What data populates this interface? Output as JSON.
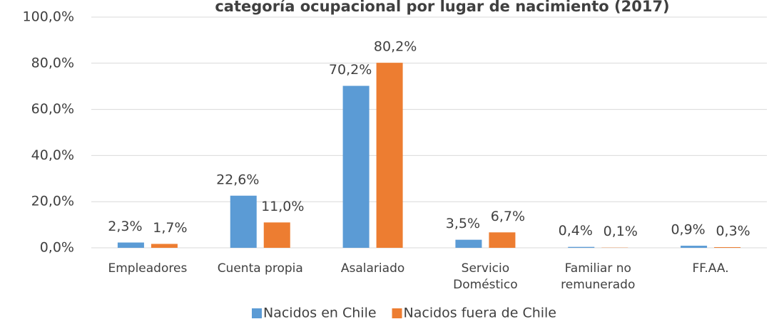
{
  "chart_data": {
    "type": "bar",
    "title": "categoría ocupacional por lugar de nacimiento (2017)",
    "categories": [
      "Empleadores",
      "Cuenta propia",
      "Asalariado",
      "Servicio\nDoméstico",
      "Familiar no\nremunerado",
      "FF.AA."
    ],
    "series": [
      {
        "name": "Nacidos en Chile",
        "color": "#5b9bd5",
        "values": [
          2.3,
          22.6,
          70.2,
          3.5,
          0.4,
          0.9
        ],
        "value_labels": [
          "2,3%",
          "22,6%",
          "70,2%",
          "3,5%",
          "0,4%",
          "0,9%"
        ]
      },
      {
        "name": "Nacidos fuera de Chile",
        "color": "#ed7d31",
        "values": [
          1.7,
          11.0,
          80.2,
          6.7,
          0.1,
          0.3
        ],
        "value_labels": [
          "1,7%",
          "11,0%",
          "80,2%",
          "6,7%",
          "0,1%",
          "0,3%"
        ]
      }
    ],
    "ylim": [
      0,
      100
    ],
    "yticks": [
      {
        "value": 0,
        "label": "0,0%"
      },
      {
        "value": 20,
        "label": "20,0%"
      },
      {
        "value": 40,
        "label": "40,0%"
      },
      {
        "value": 60,
        "label": "60,0%"
      },
      {
        "value": 80,
        "label": "80,0%"
      },
      {
        "value": 100,
        "label": "100,0%"
      }
    ],
    "grid": true,
    "legend": "bottom"
  }
}
